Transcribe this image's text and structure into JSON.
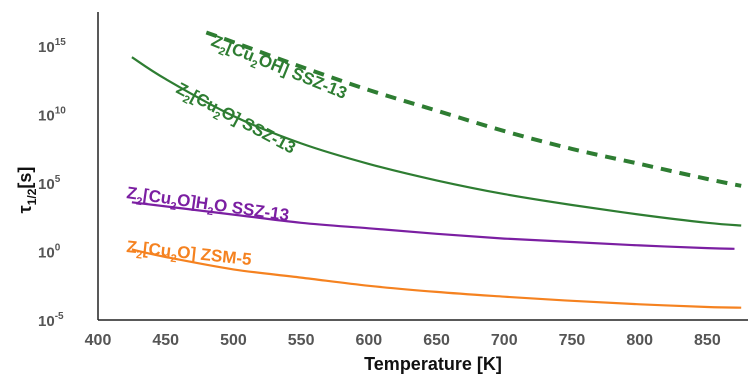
{
  "chart_data": {
    "type": "line",
    "xlabel": "Temperature [K]",
    "ylabel": "τ1/2[s]",
    "ylabel_parts": {
      "symbol": "τ",
      "subscript": "1/2",
      "unit": "[s]"
    },
    "xlim": [
      400,
      880
    ],
    "ylim_log10": [
      -5,
      17.5
    ],
    "y_scale": "log",
    "grid": false,
    "x_ticks": [
      400,
      450,
      500,
      550,
      600,
      650,
      700,
      750,
      800,
      850
    ],
    "x_tick_labels": [
      "400",
      "450",
      "500",
      "550",
      "600",
      "650",
      "700",
      "750",
      "800",
      "850"
    ],
    "y_ticks": [
      {
        "log10": 15,
        "base": "10",
        "exp": "15"
      },
      {
        "log10": 10,
        "base": "10",
        "exp": "10"
      },
      {
        "log10": 5,
        "base": "10",
        "exp": "5"
      },
      {
        "log10": 0,
        "base": "10",
        "exp": "0"
      },
      {
        "log10": -5,
        "base": "10",
        "exp": "-5"
      }
    ],
    "series": [
      {
        "name": "Z2[Cu2OH] SSZ-13",
        "color": "#2e7d32",
        "dashed": true,
        "x": [
          480,
          500,
          550,
          600,
          650,
          700,
          750,
          800,
          850,
          875
        ],
        "log10_y": [
          16.0,
          15.3,
          13.5,
          11.8,
          10.3,
          8.8,
          7.5,
          6.4,
          5.3,
          4.8
        ]
      },
      {
        "name": "Z2[Cu2O] SSZ-13",
        "color": "#2e7d32",
        "dashed": false,
        "x": [
          425,
          450,
          500,
          550,
          600,
          650,
          700,
          750,
          800,
          850,
          875
        ],
        "log10_y": [
          14.2,
          12.6,
          9.9,
          7.9,
          6.4,
          5.2,
          4.2,
          3.4,
          2.7,
          2.1,
          1.9
        ]
      },
      {
        "name": "Z2[Cu2O]H2O SSZ-13",
        "color": "#7b1fa2",
        "dashed": false,
        "x": [
          425,
          450,
          500,
          550,
          600,
          650,
          700,
          750,
          800,
          850,
          870
        ],
        "log10_y": [
          3.6,
          3.3,
          2.7,
          2.1,
          1.7,
          1.3,
          0.95,
          0.7,
          0.45,
          0.25,
          0.2
        ]
      },
      {
        "name": "Z2[Cu2O] ZSM-5",
        "color": "#f58220",
        "dashed": false,
        "x": [
          425,
          450,
          500,
          550,
          600,
          650,
          700,
          750,
          800,
          850,
          875
        ],
        "log10_y": [
          0.15,
          -0.4,
          -1.3,
          -1.9,
          -2.5,
          -2.95,
          -3.3,
          -3.6,
          -3.85,
          -4.05,
          -4.1
        ]
      }
    ],
    "annotations": [
      {
        "parts": [
          [
            "Z",
            "n"
          ],
          [
            "2",
            "s"
          ],
          [
            "[Cu",
            "n"
          ],
          [
            "2",
            "s"
          ],
          [
            "OH] SSZ-13",
            "n"
          ]
        ],
        "color": "#2e7d32",
        "x": 210,
        "y": 45,
        "rotate": 22
      },
      {
        "parts": [
          [
            "Z",
            "n"
          ],
          [
            "2",
            "s"
          ],
          [
            "[Cu",
            "n"
          ],
          [
            "2",
            "s"
          ],
          [
            "O] SSZ-13",
            "n"
          ]
        ],
        "color": "#2e7d32",
        "x": 175,
        "y": 92,
        "rotate": 28
      },
      {
        "parts": [
          [
            "Z",
            "n"
          ],
          [
            "2",
            "s"
          ],
          [
            "[Cu",
            "n"
          ],
          [
            "2",
            "s"
          ],
          [
            "O]H",
            "n"
          ],
          [
            "2",
            "s"
          ],
          [
            "O SSZ-13",
            "n"
          ]
        ],
        "color": "#7b1fa2",
        "x": 126,
        "y": 198,
        "rotate": 8
      },
      {
        "parts": [
          [
            "Z",
            "n"
          ],
          [
            "2",
            "s"
          ],
          [
            "[Cu",
            "n"
          ],
          [
            "2",
            "s"
          ],
          [
            "O] ZSM-5",
            "n"
          ]
        ],
        "color": "#f58220",
        "x": 126,
        "y": 252,
        "rotate": 6
      }
    ]
  }
}
